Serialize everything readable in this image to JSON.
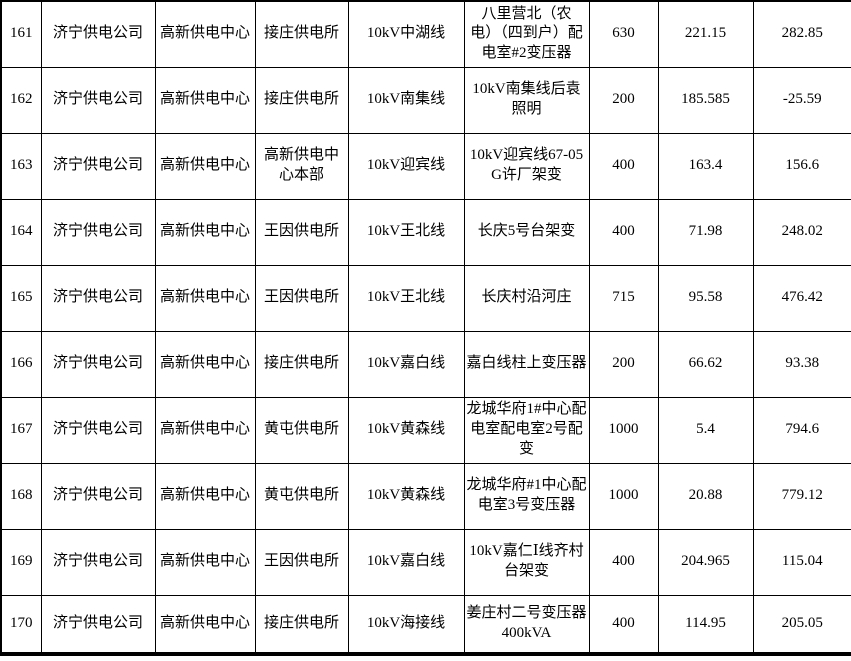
{
  "colors": {
    "background": "#ffffff",
    "grid_border": "#000000",
    "text": "#000000"
  },
  "table": {
    "rows": [
      {
        "row_number": "161",
        "company": "济宁供电公司",
        "supply_center": "高新供电中心",
        "supply_station": "接庄供电所",
        "line_name": "10kV中湖线",
        "device_name": "八里营北（农电）（四到户）配电室#2变压器",
        "capacity": "630",
        "reading_1": "221.15",
        "reading_2": "282.85"
      },
      {
        "row_number": "162",
        "company": "济宁供电公司",
        "supply_center": "高新供电中心",
        "supply_station": "接庄供电所",
        "line_name": "10kV南集线",
        "device_name": "10kV南集线后袁照明",
        "capacity": "200",
        "reading_1": "185.585",
        "reading_2": "-25.59"
      },
      {
        "row_number": "163",
        "company": "济宁供电公司",
        "supply_center": "高新供电中心",
        "supply_station": "高新供电中心本部",
        "line_name": "10kV迎宾线",
        "device_name": "10kV迎宾线67-05G许厂架变",
        "capacity": "400",
        "reading_1": "163.4",
        "reading_2": "156.6"
      },
      {
        "row_number": "164",
        "company": "济宁供电公司",
        "supply_center": "高新供电中心",
        "supply_station": "王因供电所",
        "line_name": "10kV王北线",
        "device_name": "长庆5号台架变",
        "capacity": "400",
        "reading_1": "71.98",
        "reading_2": "248.02"
      },
      {
        "row_number": "165",
        "company": "济宁供电公司",
        "supply_center": "高新供电中心",
        "supply_station": "王因供电所",
        "line_name": "10kV王北线",
        "device_name": "长庆村沿河庄",
        "capacity": "715",
        "reading_1": "95.58",
        "reading_2": "476.42"
      },
      {
        "row_number": "166",
        "company": "济宁供电公司",
        "supply_center": "高新供电中心",
        "supply_station": "接庄供电所",
        "line_name": "10kV嘉白线",
        "device_name": "嘉白线柱上变压器",
        "capacity": "200",
        "reading_1": "66.62",
        "reading_2": "93.38"
      },
      {
        "row_number": "167",
        "company": "济宁供电公司",
        "supply_center": "高新供电中心",
        "supply_station": "黄屯供电所",
        "line_name": "10kV黄森线",
        "device_name": "龙城华府1#中心配电室配电室2号配变",
        "capacity": "1000",
        "reading_1": "5.4",
        "reading_2": "794.6"
      },
      {
        "row_number": "168",
        "company": "济宁供电公司",
        "supply_center": "高新供电中心",
        "supply_station": "黄屯供电所",
        "line_name": "10kV黄森线",
        "device_name": "龙城华府#1中心配电室3号变压器",
        "capacity": "1000",
        "reading_1": "20.88",
        "reading_2": "779.12"
      },
      {
        "row_number": "169",
        "company": "济宁供电公司",
        "supply_center": "高新供电中心",
        "supply_station": "王因供电所",
        "line_name": "10kV嘉白线",
        "device_name": "10kV嘉仁Ⅰ线齐村台架变",
        "capacity": "400",
        "reading_1": "204.965",
        "reading_2": "115.04"
      },
      {
        "row_number": "170",
        "company": "济宁供电公司",
        "supply_center": "高新供电中心",
        "supply_station": "接庄供电所",
        "line_name": "10kV海接线",
        "device_name": "姜庄村二号变压器400kVA",
        "capacity": "400",
        "reading_1": "114.95",
        "reading_2": "205.05"
      }
    ]
  }
}
